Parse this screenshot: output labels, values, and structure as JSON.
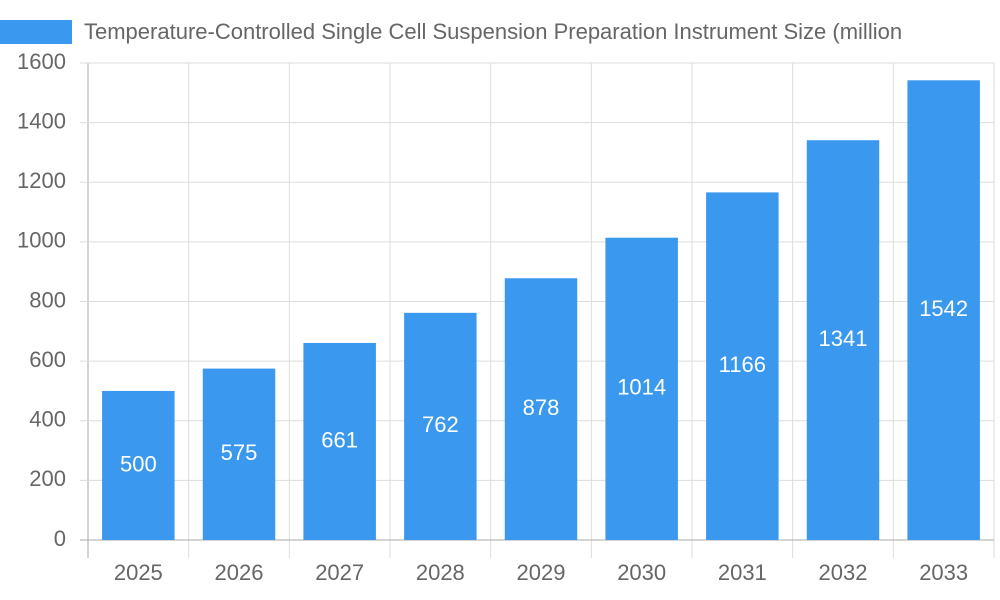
{
  "chart_data": {
    "type": "bar",
    "categories": [
      "2025",
      "2026",
      "2027",
      "2028",
      "2029",
      "2030",
      "2031",
      "2032",
      "2033"
    ],
    "series": [
      {
        "name": "Temperature-Controlled Single Cell Suspension Preparation Instrument Size (million",
        "color": "#3a99ee",
        "values": [
          500,
          575,
          661,
          762,
          878,
          1014,
          1166,
          1341,
          1542
        ]
      }
    ],
    "ylim": [
      0,
      1600
    ],
    "yticks": [
      0,
      200,
      400,
      600,
      800,
      1000,
      1200,
      1400,
      1600
    ],
    "grid": true
  }
}
